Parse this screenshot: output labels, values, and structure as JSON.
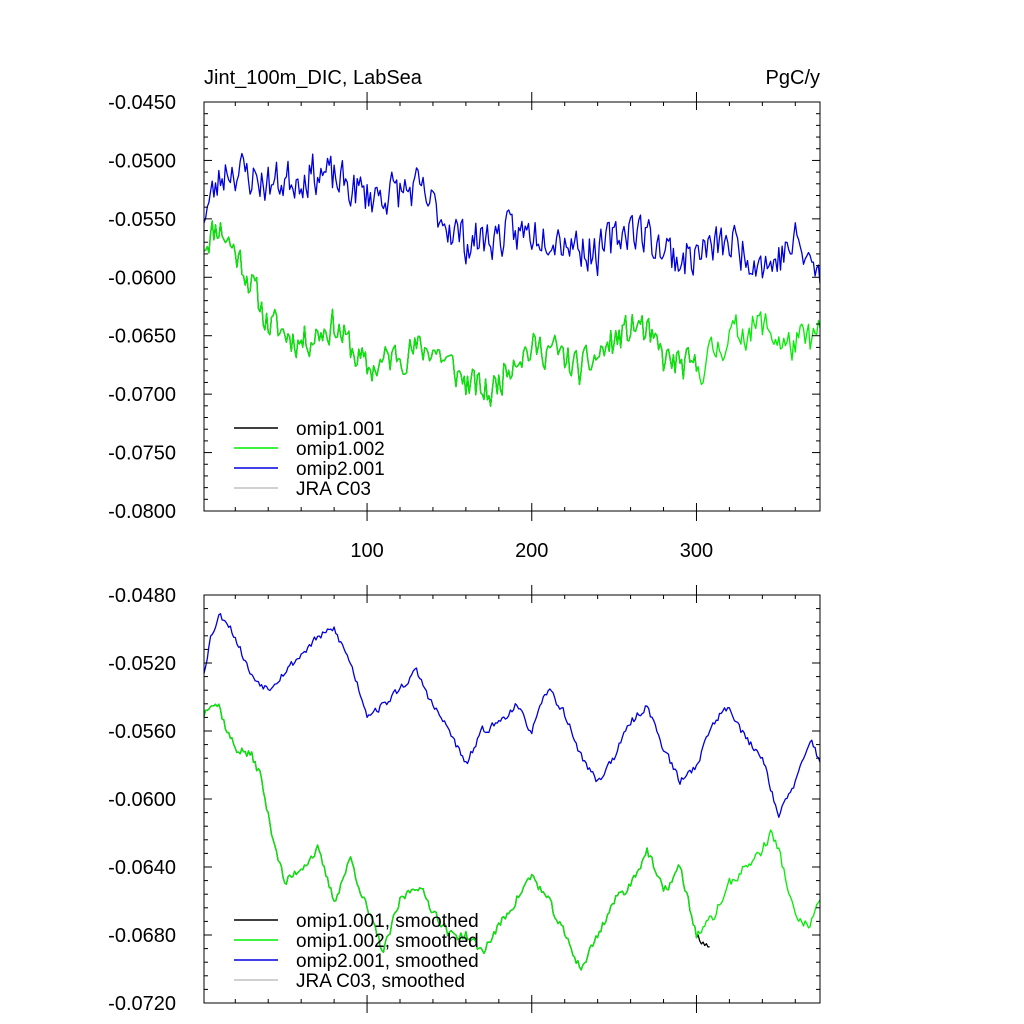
{
  "chart_data": [
    {
      "type": "line",
      "title_left": "Jint_100m_DIC, LabSea",
      "title_right": "PgC/y",
      "xlabel": "",
      "ylabel": "",
      "xlim": [
        1,
        375
      ],
      "ylim": [
        -0.08,
        -0.045
      ],
      "x_ticks": [
        100,
        200,
        300
      ],
      "x_tick_labels": [
        "100",
        "200",
        "300"
      ],
      "y_ticks": [
        -0.045,
        -0.05,
        -0.055,
        -0.06,
        -0.065,
        -0.07,
        -0.075,
        -0.08
      ],
      "y_tick_labels": [
        "-0.0450",
        "-0.0500",
        "-0.0550",
        "-0.0600",
        "-0.0650",
        "-0.0700",
        "-0.0750",
        "-0.0800"
      ],
      "legend_position": "bottom-left",
      "series": [
        {
          "name": "omip1.001",
          "color": "#000000",
          "x_start": 1,
          "x_end": 300,
          "noise": 0.0025,
          "seed": 11,
          "anchors": [
            [
              1,
              -0.057
            ],
            [
              10,
              -0.0555
            ],
            [
              25,
              -0.059
            ],
            [
              40,
              -0.064
            ],
            [
              60,
              -0.0655
            ],
            [
              80,
              -0.064
            ],
            [
              100,
              -0.068
            ],
            [
              120,
              -0.0665
            ],
            [
              140,
              -0.066
            ],
            [
              160,
              -0.069
            ],
            [
              175,
              -0.07
            ],
            [
              190,
              -0.0665
            ],
            [
              210,
              -0.066
            ],
            [
              230,
              -0.068
            ],
            [
              250,
              -0.0655
            ],
            [
              265,
              -0.064
            ],
            [
              280,
              -0.067
            ],
            [
              300,
              -0.068
            ]
          ]
        },
        {
          "name": "omip1.002",
          "color": "#00ee00",
          "x_start": 1,
          "x_end": 375,
          "noise": 0.0025,
          "seed": 11,
          "anchors": [
            [
              1,
              -0.057
            ],
            [
              10,
              -0.0555
            ],
            [
              25,
              -0.059
            ],
            [
              40,
              -0.064
            ],
            [
              60,
              -0.0655
            ],
            [
              80,
              -0.064
            ],
            [
              100,
              -0.068
            ],
            [
              120,
              -0.0665
            ],
            [
              140,
              -0.066
            ],
            [
              160,
              -0.069
            ],
            [
              175,
              -0.07
            ],
            [
              190,
              -0.0665
            ],
            [
              210,
              -0.066
            ],
            [
              230,
              -0.068
            ],
            [
              250,
              -0.0655
            ],
            [
              265,
              -0.064
            ],
            [
              280,
              -0.067
            ],
            [
              300,
              -0.068
            ],
            [
              320,
              -0.065
            ],
            [
              340,
              -0.064
            ],
            [
              355,
              -0.066
            ],
            [
              375,
              -0.065
            ]
          ]
        },
        {
          "name": "omip2.001",
          "color": "#0000dd",
          "x_start": 1,
          "x_end": 375,
          "noise": 0.003,
          "seed": 23,
          "anchors": [
            [
              1,
              -0.0545
            ],
            [
              15,
              -0.0505
            ],
            [
              40,
              -0.052
            ],
            [
              70,
              -0.051
            ],
            [
              100,
              -0.053
            ],
            [
              130,
              -0.0525
            ],
            [
              160,
              -0.057
            ],
            [
              180,
              -0.0565
            ],
            [
              210,
              -0.056
            ],
            [
              240,
              -0.058
            ],
            [
              260,
              -0.0555
            ],
            [
              290,
              -0.0585
            ],
            [
              320,
              -0.057
            ],
            [
              345,
              -0.059
            ],
            [
              360,
              -0.057
            ],
            [
              375,
              -0.06
            ]
          ]
        },
        {
          "name": "JRA C03",
          "color": "#c0c0c0",
          "x_start": 1,
          "x_end": 1,
          "noise": 0,
          "seed": 1,
          "anchors": []
        }
      ]
    },
    {
      "type": "line",
      "xlabel": "",
      "ylabel": "",
      "xlim": [
        1,
        375
      ],
      "ylim": [
        -0.072,
        -0.048
      ],
      "x_ticks": [
        100,
        200,
        300
      ],
      "y_ticks": [
        -0.048,
        -0.052,
        -0.056,
        -0.06,
        -0.064,
        -0.068,
        -0.072
      ],
      "y_tick_labels": [
        "-0.0480",
        "-0.0520",
        "-0.0560",
        "-0.0600",
        "-0.0640",
        "-0.0680",
        "-0.0720"
      ],
      "legend_position": "bottom-left",
      "series": [
        {
          "name": "omip1.001, smoothed",
          "color": "#000000",
          "x_start": 1,
          "x_end": 308,
          "noise": 0.0005,
          "seed": 37,
          "anchors": [
            [
              1,
              -0.055
            ],
            [
              5,
              -0.0542
            ],
            [
              10,
              -0.0545
            ],
            [
              15,
              -0.056
            ],
            [
              20,
              -0.057
            ],
            [
              25,
              -0.0572
            ],
            [
              30,
              -0.0575
            ],
            [
              35,
              -0.0585
            ],
            [
              40,
              -0.061
            ],
            [
              50,
              -0.065
            ],
            [
              60,
              -0.064
            ],
            [
              70,
              -0.063
            ],
            [
              80,
              -0.066
            ],
            [
              90,
              -0.0635
            ],
            [
              100,
              -0.0665
            ],
            [
              110,
              -0.069
            ],
            [
              120,
              -0.066
            ],
            [
              130,
              -0.065
            ],
            [
              140,
              -0.0665
            ],
            [
              150,
              -0.068
            ],
            [
              160,
              -0.068
            ],
            [
              170,
              -0.069
            ],
            [
              180,
              -0.0675
            ],
            [
              190,
              -0.066
            ],
            [
              200,
              -0.0645
            ],
            [
              210,
              -0.066
            ],
            [
              220,
              -0.068
            ],
            [
              230,
              -0.07
            ],
            [
              240,
              -0.068
            ],
            [
              250,
              -0.066
            ],
            [
              260,
              -0.065
            ],
            [
              270,
              -0.063
            ],
            [
              280,
              -0.0655
            ],
            [
              290,
              -0.064
            ],
            [
              300,
              -0.068
            ],
            [
              308,
              -0.069
            ]
          ]
        },
        {
          "name": "omip1.002, smoothed",
          "color": "#00ee00",
          "x_start": 1,
          "x_end": 375,
          "noise": 0.0005,
          "seed": 37,
          "anchors": [
            [
              1,
              -0.055
            ],
            [
              5,
              -0.0542
            ],
            [
              10,
              -0.0545
            ],
            [
              15,
              -0.056
            ],
            [
              20,
              -0.057
            ],
            [
              25,
              -0.0572
            ],
            [
              30,
              -0.0575
            ],
            [
              35,
              -0.0585
            ],
            [
              40,
              -0.061
            ],
            [
              50,
              -0.065
            ],
            [
              60,
              -0.064
            ],
            [
              70,
              -0.063
            ],
            [
              80,
              -0.066
            ],
            [
              90,
              -0.0635
            ],
            [
              100,
              -0.0665
            ],
            [
              110,
              -0.069
            ],
            [
              120,
              -0.066
            ],
            [
              130,
              -0.065
            ],
            [
              140,
              -0.0665
            ],
            [
              150,
              -0.068
            ],
            [
              160,
              -0.068
            ],
            [
              170,
              -0.069
            ],
            [
              180,
              -0.0675
            ],
            [
              190,
              -0.066
            ],
            [
              200,
              -0.0645
            ],
            [
              210,
              -0.066
            ],
            [
              220,
              -0.068
            ],
            [
              230,
              -0.07
            ],
            [
              240,
              -0.068
            ],
            [
              250,
              -0.066
            ],
            [
              260,
              -0.065
            ],
            [
              270,
              -0.063
            ],
            [
              280,
              -0.0655
            ],
            [
              290,
              -0.064
            ],
            [
              300,
              -0.068
            ],
            [
              310,
              -0.067
            ],
            [
              320,
              -0.065
            ],
            [
              330,
              -0.064
            ],
            [
              340,
              -0.063
            ],
            [
              345,
              -0.062
            ],
            [
              350,
              -0.063
            ],
            [
              355,
              -0.065
            ],
            [
              360,
              -0.067
            ],
            [
              368,
              -0.0675
            ],
            [
              375,
              -0.066
            ]
          ]
        },
        {
          "name": "omip2.001, smoothed",
          "color": "#0000dd",
          "x_start": 1,
          "x_end": 375,
          "noise": 0.0004,
          "seed": 53,
          "anchors": [
            [
              1,
              -0.0525
            ],
            [
              5,
              -0.0505
            ],
            [
              10,
              -0.0492
            ],
            [
              15,
              -0.0495
            ],
            [
              20,
              -0.0505
            ],
            [
              30,
              -0.0528
            ],
            [
              40,
              -0.0535
            ],
            [
              50,
              -0.0525
            ],
            [
              60,
              -0.0515
            ],
            [
              70,
              -0.0505
            ],
            [
              80,
              -0.05
            ],
            [
              90,
              -0.052
            ],
            [
              100,
              -0.055
            ],
            [
              110,
              -0.0545
            ],
            [
              120,
              -0.0535
            ],
            [
              130,
              -0.0525
            ],
            [
              140,
              -0.0545
            ],
            [
              150,
              -0.056
            ],
            [
              160,
              -0.058
            ],
            [
              170,
              -0.056
            ],
            [
              180,
              -0.0555
            ],
            [
              190,
              -0.0545
            ],
            [
              200,
              -0.056
            ],
            [
              210,
              -0.0535
            ],
            [
              220,
              -0.055
            ],
            [
              230,
              -0.0575
            ],
            [
              240,
              -0.059
            ],
            [
              250,
              -0.0575
            ],
            [
              260,
              -0.0555
            ],
            [
              270,
              -0.0545
            ],
            [
              280,
              -0.057
            ],
            [
              290,
              -0.059
            ],
            [
              300,
              -0.058
            ],
            [
              310,
              -0.0555
            ],
            [
              320,
              -0.0545
            ],
            [
              330,
              -0.0565
            ],
            [
              340,
              -0.0575
            ],
            [
              350,
              -0.061
            ],
            [
              360,
              -0.059
            ],
            [
              370,
              -0.0565
            ],
            [
              375,
              -0.0578
            ]
          ]
        },
        {
          "name": "JRA C03, smoothed",
          "color": "#c0c0c0",
          "x_start": 1,
          "x_end": 1,
          "noise": 0,
          "seed": 1,
          "anchors": []
        }
      ]
    }
  ]
}
